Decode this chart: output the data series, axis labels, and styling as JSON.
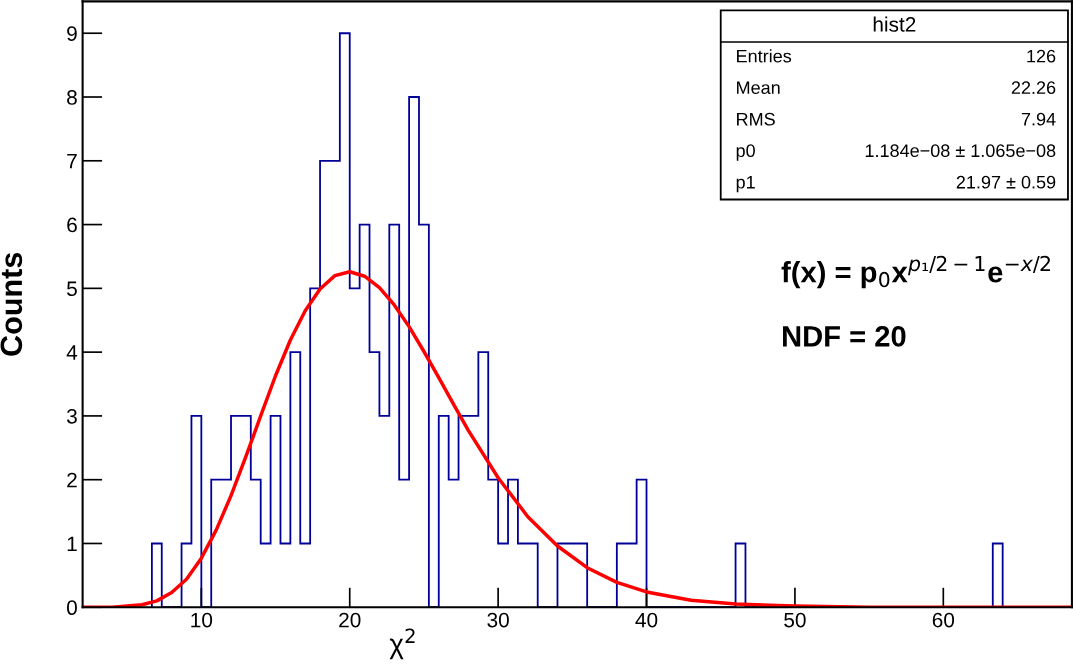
{
  "chart_data": {
    "type": "histogram",
    "xlabel": "χ$^{2}$",
    "ylabel": "Counts",
    "bins": [
      6.667,
      7.333,
      8.0,
      8.667,
      9.333,
      10.0,
      10.667,
      11.333,
      12.0,
      12.667,
      13.333,
      14.0,
      14.667,
      15.333,
      16.0,
      16.667,
      17.333,
      18.0,
      18.667,
      19.333,
      20.0,
      20.667,
      21.333,
      22.0,
      22.667,
      23.333,
      24.0,
      24.667,
      25.333,
      26.0,
      26.667,
      27.333,
      28.0,
      28.667,
      29.333,
      30.0,
      30.667,
      31.333,
      32.0,
      32.667,
      33.333,
      34.0,
      34.667,
      35.333,
      36.0,
      36.667,
      37.333,
      38.0,
      38.667,
      39.333,
      40.0,
      40.667,
      41.333,
      42.0,
      42.667,
      43.333,
      44.0,
      44.667,
      45.333,
      46.0,
      46.667,
      47.333,
      48.0,
      48.667,
      49.333,
      50.0,
      50.667,
      51.333,
      52.0,
      52.667,
      53.333,
      54.0,
      54.667,
      55.333,
      56.0,
      56.667,
      57.333,
      58.0,
      58.667,
      59.333,
      60.0,
      60.667,
      61.333,
      62.0,
      62.667,
      63.333,
      64.0
    ],
    "series": [
      {
        "color": "#000099",
        "values": [
          1,
          0,
          0,
          1,
          3,
          0,
          2,
          2,
          3,
          3,
          2,
          1,
          3,
          1,
          4,
          1,
          5,
          7,
          7,
          9,
          5,
          6,
          4,
          3,
          6,
          2,
          8,
          6,
          0,
          3,
          2,
          3,
          3,
          4,
          2,
          1,
          2,
          1,
          1,
          0,
          0,
          1,
          1,
          1,
          0,
          0,
          0,
          1,
          1,
          2,
          0,
          0,
          0,
          0,
          0,
          0,
          0,
          0,
          0,
          1,
          0,
          0,
          0,
          0,
          0,
          0,
          0,
          0,
          0,
          0,
          0,
          0,
          0,
          0,
          0,
          0,
          0,
          0,
          0,
          0,
          0,
          0,
          0,
          0,
          0,
          1
        ]
      },
      {
        "type": "line",
        "color": "#ff0000",
        "x": [
          2,
          4,
          6,
          7,
          8,
          9,
          10,
          11,
          12,
          13,
          14,
          15,
          16,
          17,
          18,
          19,
          20,
          21,
          22,
          23,
          24,
          25,
          26,
          27,
          28,
          30,
          32,
          34,
          36,
          38,
          40,
          43,
          46,
          50,
          55,
          60,
          68.667
        ],
        "values": [
          0.0,
          0.0,
          0.04,
          0.1,
          0.23,
          0.44,
          0.77,
          1.21,
          1.75,
          2.36,
          3.0,
          3.63,
          4.19,
          4.65,
          4.99,
          5.2,
          5.26,
          5.19,
          5.01,
          4.74,
          4.4,
          4.01,
          3.6,
          3.18,
          2.77,
          2.03,
          1.42,
          0.96,
          0.62,
          0.39,
          0.24,
          0.11,
          0.05,
          0.02,
          0.0,
          0.0,
          0.0
        ]
      }
    ],
    "xlim": [
      2.0,
      68.667
    ],
    "ylim": [
      0,
      9.5
    ],
    "xticks": [
      10,
      20,
      30,
      40,
      50,
      60
    ],
    "yticks": [
      0,
      1,
      2,
      3,
      4,
      5,
      6,
      7,
      8,
      9
    ],
    "grid": false,
    "legend": false,
    "annotations": [
      "hist2",
      "Entries",
      "126",
      "Mean",
      "22.26",
      "RMS",
      "7.94",
      "p0",
      "1.184e−08 ± 1.065e−08",
      "p1",
      "21.97 ± 0.59",
      "f(x) = p$_{0}$x$^{p₁/2−1}$e$^{−x/2}$",
      "NDF = 20"
    ]
  }
}
